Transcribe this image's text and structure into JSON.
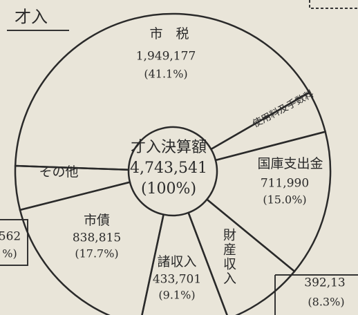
{
  "chart_data": {
    "type": "pie",
    "title": "才入",
    "center_labels": [
      "才入決算額",
      "4,743,541",
      "(100%)"
    ],
    "categories": [
      "市　税",
      "使用料及手数料",
      "国庫支出金",
      "財産収入",
      "諸収入",
      "市債",
      "その他"
    ],
    "values": [
      41.1,
      4.3,
      15.0,
      8.3,
      9.1,
      17.7,
      4.5
    ],
    "amounts": [
      "1,949,177",
      null,
      "711,990",
      "392,13",
      "433,701",
      "838,815",
      "562"
    ],
    "value_labels": [
      "(41.1%)",
      null,
      "(15.0%)",
      "(8.3%)",
      "(9.1%)",
      "(17.7%)",
      "%)"
    ],
    "color": "#2a2a2a"
  }
}
